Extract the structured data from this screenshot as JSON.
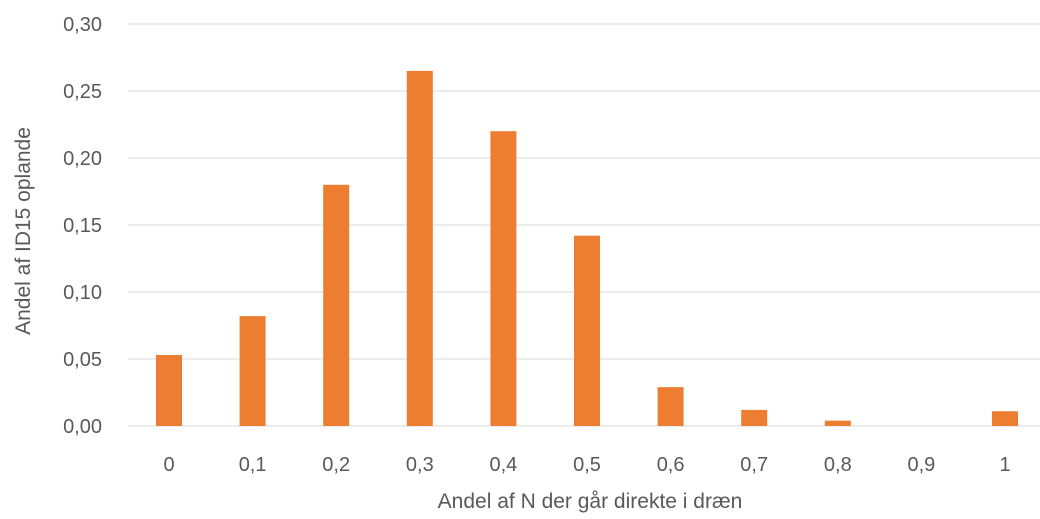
{
  "chart_data": {
    "type": "bar",
    "categories": [
      "0",
      "0,1",
      "0,2",
      "0,3",
      "0,4",
      "0,5",
      "0,6",
      "0,7",
      "0,8",
      "0,9",
      "1"
    ],
    "values": [
      0.053,
      0.082,
      0.18,
      0.265,
      0.22,
      0.142,
      0.029,
      0.012,
      0.004,
      0.0,
      0.011
    ],
    "xlabel": "Andel af N der går direkte i dræn",
    "ylabel": "Andel af ID15 oplande",
    "ylim": [
      0,
      0.3
    ],
    "yticks": [
      "0,00",
      "0,05",
      "0,10",
      "0,15",
      "0,20",
      "0,25",
      "0,30"
    ],
    "grid": true,
    "bar_color": "#ED7D31",
    "grid_color": "#D9D9D9",
    "text_color": "#595959"
  }
}
